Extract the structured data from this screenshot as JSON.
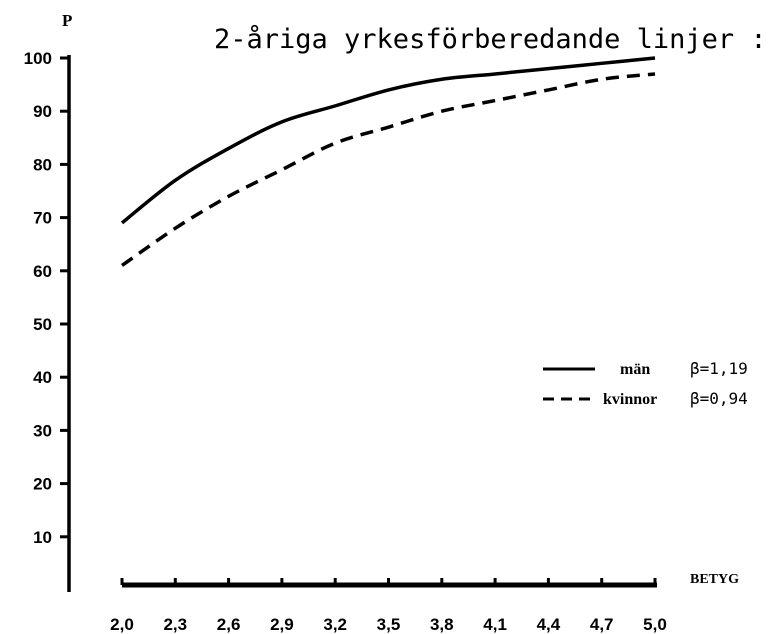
{
  "chart_data": {
    "type": "line",
    "title": "2-åriga yrkesförberedande linjer :",
    "ylabel": "P",
    "xlabel": "BETYG",
    "x": [
      2.0,
      2.3,
      2.6,
      2.9,
      3.2,
      3.5,
      3.8,
      4.1,
      4.4,
      4.7,
      5.0
    ],
    "x_tick_labels": [
      "2,0",
      "2,3",
      "2,6",
      "2,9",
      "3,2",
      "3,5",
      "3,8",
      "4,1",
      "4,4",
      "4,7",
      "5,0"
    ],
    "y_ticks": [
      10,
      20,
      30,
      40,
      50,
      60,
      70,
      80,
      90,
      100
    ],
    "ylim": [
      0,
      100
    ],
    "xlim": [
      2.0,
      5.0
    ],
    "grid": false,
    "legend_position": "right",
    "series": [
      {
        "name": "män",
        "beta_label": "β=1,19",
        "style": "solid",
        "values": [
          69,
          77,
          83,
          88,
          91,
          94,
          96,
          97,
          98,
          99,
          100
        ]
      },
      {
        "name": "kvinnor",
        "beta_label": "β=0,94",
        "style": "dashed",
        "values": [
          61,
          68,
          74,
          79,
          84,
          87,
          90,
          92,
          94,
          96,
          97
        ]
      }
    ]
  }
}
